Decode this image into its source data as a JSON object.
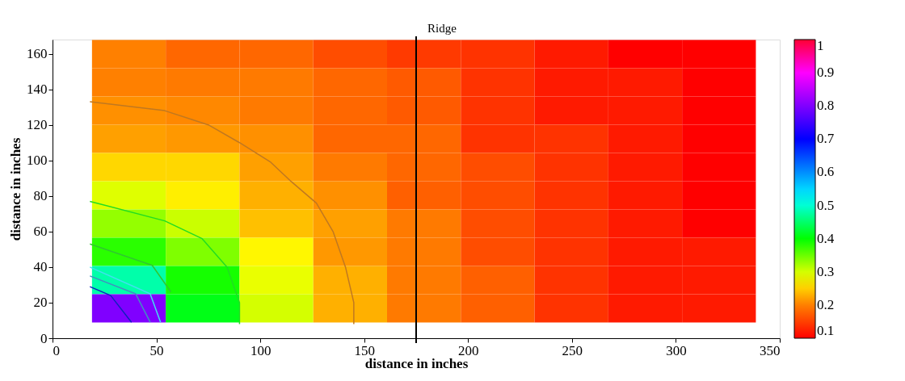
{
  "chart_data": {
    "type": "heatmap",
    "xlabel": "distance in inches",
    "ylabel": "distance in inches",
    "x": [
      36.75,
      72.25,
      107.75,
      143.25,
      178.75,
      214.25,
      249.75,
      285.25,
      320.75
    ],
    "y": [
      159.85,
      143.95,
      128.05,
      112.15,
      96.25,
      80.35,
      64.45,
      48.55,
      32.65,
      16.75
    ],
    "cells": [
      [
        0.2,
        0.18,
        0.18,
        0.16,
        0.145,
        0.14,
        0.12,
        0.1,
        0.1
      ],
      [
        0.2,
        0.195,
        0.195,
        0.18,
        0.17,
        0.14,
        0.12,
        0.12,
        0.1
      ],
      [
        0.21,
        0.205,
        0.195,
        0.18,
        0.17,
        0.14,
        0.12,
        0.12,
        0.1
      ],
      [
        0.22,
        0.215,
        0.21,
        0.18,
        0.18,
        0.14,
        0.14,
        0.12,
        0.1
      ],
      [
        0.255,
        0.255,
        0.22,
        0.195,
        0.18,
        0.16,
        0.14,
        0.12,
        0.1
      ],
      [
        0.295,
        0.27,
        0.23,
        0.21,
        0.175,
        0.16,
        0.14,
        0.12,
        0.1
      ],
      [
        0.33,
        0.305,
        0.24,
        0.22,
        0.195,
        0.16,
        0.14,
        0.12,
        0.1
      ],
      [
        0.38,
        0.34,
        0.275,
        0.215,
        0.195,
        0.16,
        0.14,
        0.12,
        0.12
      ],
      [
        0.48,
        0.39,
        0.29,
        0.23,
        0.195,
        0.175,
        0.14,
        0.12,
        0.12
      ],
      [
        0.8,
        0.41,
        0.3,
        0.23,
        0.195,
        0.175,
        0.14,
        0.12,
        0.12
      ]
    ],
    "clim": [
      0.1,
      1
    ],
    "cticks": [
      0.1,
      0.2,
      0.3,
      0.4,
      0.5,
      0.6,
      0.7,
      0.8,
      0.9,
      1
    ],
    "series": [
      {
        "type": "line",
        "color": "#c07820",
        "x": [
          18,
          54,
          75,
          90,
          105,
          115,
          127,
          135,
          141,
          145,
          145
        ],
        "values": [
          133,
          128,
          120,
          110,
          99,
          88,
          76,
          60,
          40,
          20,
          8
        ]
      },
      {
        "type": "line",
        "color": "#22dd22",
        "x": [
          18,
          54,
          72,
          84,
          90,
          90
        ],
        "values": [
          77,
          66,
          56,
          40,
          20,
          8
        ]
      },
      {
        "type": "line",
        "color": "#30c830",
        "x": [
          18,
          48,
          57
        ],
        "values": [
          53,
          41,
          26
        ]
      },
      {
        "type": "line",
        "color": "#40e0f0",
        "x": [
          18,
          47,
          52
        ],
        "values": [
          40,
          25,
          9
        ]
      },
      {
        "type": "line",
        "color": "#4090c0",
        "x": [
          18,
          40,
          47
        ],
        "values": [
          35,
          25,
          9
        ]
      },
      {
        "type": "line",
        "color": "#1020c0",
        "x": [
          18,
          28,
          38
        ],
        "values": [
          29,
          24,
          9
        ]
      }
    ],
    "ref_lines": [
      {
        "axis": "x",
        "value": 175,
        "label": "Ridge",
        "color": "#000000"
      }
    ],
    "xlim": [
      0,
      350
    ],
    "xticks": [
      0,
      50,
      100,
      150,
      200,
      250,
      300,
      350
    ],
    "ylim": [
      0,
      168
    ],
    "yticks": [
      0,
      20,
      40,
      60,
      80,
      100,
      120,
      140,
      160
    ],
    "grid": false
  }
}
